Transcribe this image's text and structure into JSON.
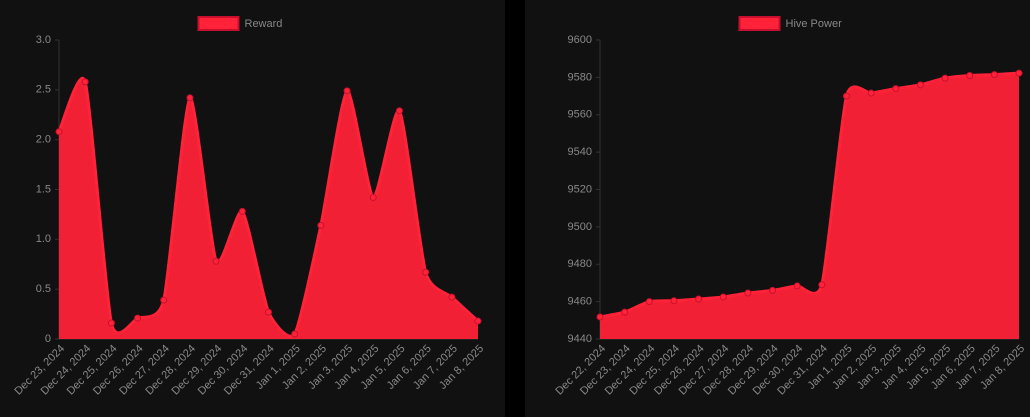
{
  "chart_data": [
    {
      "type": "line",
      "fill": true,
      "categories": [
        "Dec 23, 2024",
        "Dec 24, 2024",
        "Dec 25, 2024",
        "Dec 26, 2024",
        "Dec 27, 2024",
        "Dec 28, 2024",
        "Dec 29, 2024",
        "Dec 30, 2024",
        "Dec 31, 2024",
        "Jan 1, 2025",
        "Jan 2, 2025",
        "Jan 3, 2025",
        "Jan 4, 2025",
        "Jan 5, 2025",
        "Jan 6, 2025",
        "Jan 7, 2025",
        "Jan 8, 2025"
      ],
      "series": [
        {
          "name": "Reward",
          "color": "#ff2238",
          "values": [
            2.08,
            2.58,
            0.16,
            0.21,
            0.39,
            2.42,
            0.78,
            1.28,
            0.27,
            0.05,
            1.14,
            2.49,
            1.42,
            2.29,
            0.67,
            0.42,
            0.18
          ]
        }
      ],
      "ylim": [
        0,
        3
      ],
      "yticks": [
        0,
        0.5,
        {
          "value": 1,
          "label": "1.0"
        },
        1.5,
        {
          "value": 2,
          "label": "2.0"
        },
        2.5,
        {
          "value": 3,
          "label": "3.0"
        }
      ]
    },
    {
      "type": "line",
      "fill": true,
      "categories": [
        "Dec 22, 2024",
        "Dec 23, 2024",
        "Dec 24, 2024",
        "Dec 25, 2024",
        "Dec 26, 2024",
        "Dec 27, 2024",
        "Dec 28, 2024",
        "Dec 29, 2024",
        "Dec 30, 2024",
        "Dec 31, 2024",
        "Jan 1, 2025",
        "Jan 2, 2025",
        "Jan 3, 2025",
        "Jan 4, 2025",
        "Jan 5, 2025",
        "Jan 6, 2025",
        "Jan 7, 2025",
        "Jan 8, 2025"
      ],
      "series": [
        {
          "name": "Hive Power",
          "color": "#ff2238",
          "values": [
            9451.8,
            9454.4,
            9460,
            9460.5,
            9461.4,
            9462.5,
            9464.6,
            9466,
            9468.4,
            9469,
            9570,
            9571.6,
            9574,
            9576,
            9579.6,
            9581,
            9581.5,
            9582.3
          ]
        }
      ],
      "ylim": [
        9440,
        9600
      ],
      "yticks": [
        9440,
        9460,
        9480,
        9500,
        9520,
        9540,
        9560,
        9580,
        9600
      ]
    }
  ]
}
